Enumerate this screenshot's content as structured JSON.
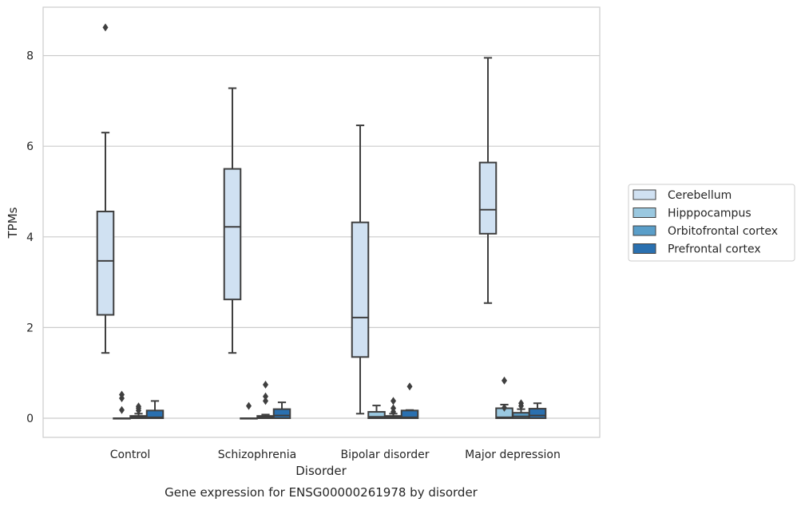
{
  "chart_data": {
    "type": "box",
    "caption": "Gene expression for ENSG00000261978 by disorder",
    "xlabel": "Disorder",
    "ylabel": "TPMs",
    "ylim": [
      -0.4,
      9.1
    ],
    "yticks": [
      0,
      2,
      4,
      6,
      8
    ],
    "grid": "horizontal",
    "legend_position": "right",
    "categories": [
      "Control",
      "Schizophrenia",
      "Bipolar disorder",
      "Major depression"
    ],
    "series": [
      {
        "name": "Cerebellum",
        "color": "#d0e1f2",
        "boxes": [
          {
            "q1": 2.28,
            "median": 3.47,
            "q3": 4.56,
            "whisker_low": 1.44,
            "whisker_high": 6.3,
            "outliers": [
              8.62
            ]
          },
          {
            "q1": 2.62,
            "median": 4.22,
            "q3": 5.5,
            "whisker_low": 1.44,
            "whisker_high": 7.28,
            "outliers": []
          },
          {
            "q1": 1.35,
            "median": 2.22,
            "q3": 4.32,
            "whisker_low": 0.1,
            "whisker_high": 6.46,
            "outliers": []
          },
          {
            "q1": 4.07,
            "median": 4.6,
            "q3": 5.64,
            "whisker_low": 2.54,
            "whisker_high": 7.95,
            "outliers": []
          }
        ]
      },
      {
        "name": "Hipppocampus",
        "color": "#9ac8e0",
        "boxes": [
          {
            "q1": 0.0,
            "median": 0.0,
            "q3": 0.0,
            "whisker_low": 0.0,
            "whisker_high": 0.0,
            "outliers": [
              0.18,
              0.44,
              0.52
            ]
          },
          {
            "q1": 0.0,
            "median": 0.0,
            "q3": 0.0,
            "whisker_low": 0.0,
            "whisker_high": 0.0,
            "outliers": [
              0.27
            ]
          },
          {
            "q1": 0.0,
            "median": 0.03,
            "q3": 0.14,
            "whisker_low": 0.0,
            "whisker_high": 0.28,
            "outliers": []
          },
          {
            "q1": 0.0,
            "median": 0.02,
            "q3": 0.22,
            "whisker_low": 0.0,
            "whisker_high": 0.3,
            "outliers": [
              0.23,
              0.83
            ]
          }
        ]
      },
      {
        "name": "Orbitofrontal cortex",
        "color": "#5a9ec9",
        "boxes": [
          {
            "q1": 0.0,
            "median": 0.02,
            "q3": 0.05,
            "whisker_low": 0.0,
            "whisker_high": 0.1,
            "outliers": [
              0.17,
              0.22,
              0.26
            ]
          },
          {
            "q1": 0.0,
            "median": 0.02,
            "q3": 0.05,
            "whisker_low": 0.0,
            "whisker_high": 0.08,
            "outliers": [
              0.38,
              0.48,
              0.74
            ]
          },
          {
            "q1": 0.0,
            "median": 0.02,
            "q3": 0.05,
            "whisker_low": 0.0,
            "whisker_high": 0.1,
            "outliers": [
              0.14,
              0.22,
              0.38
            ]
          },
          {
            "q1": 0.0,
            "median": 0.04,
            "q3": 0.12,
            "whisker_low": 0.0,
            "whisker_high": 0.2,
            "outliers": [
              0.27,
              0.33
            ]
          }
        ]
      },
      {
        "name": "Prefrontal cortex",
        "color": "#2a70b0",
        "boxes": [
          {
            "q1": 0.0,
            "median": 0.02,
            "q3": 0.17,
            "whisker_low": 0.0,
            "whisker_high": 0.38,
            "outliers": []
          },
          {
            "q1": 0.0,
            "median": 0.06,
            "q3": 0.2,
            "whisker_low": 0.0,
            "whisker_high": 0.35,
            "outliers": []
          },
          {
            "q1": 0.0,
            "median": 0.02,
            "q3": 0.17,
            "whisker_low": 0.0,
            "whisker_high": 0.18,
            "outliers": [
              0.7
            ]
          },
          {
            "q1": 0.0,
            "median": 0.06,
            "q3": 0.21,
            "whisker_low": 0.0,
            "whisker_high": 0.33,
            "outliers": []
          }
        ]
      }
    ]
  }
}
